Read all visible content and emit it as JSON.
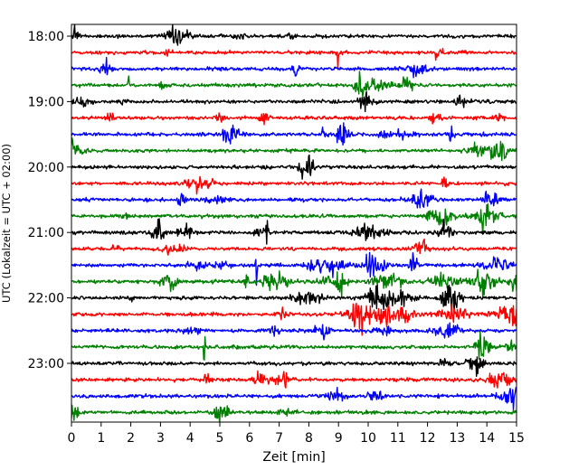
{
  "chart_data": {
    "type": "line",
    "title": "",
    "xlabel": "Zeit  [min]",
    "ylabel": "UTC (Lokalzeit = UTC + 02:00)",
    "xlim": [
      0,
      15
    ],
    "x_ticks": [
      "0",
      "1",
      "2",
      "3",
      "4",
      "5",
      "6",
      "7",
      "8",
      "9",
      "10",
      "11",
      "12",
      "13",
      "14",
      "15"
    ],
    "y_ticks": [
      {
        "label": "18:00",
        "trace": 0
      },
      {
        "label": "19:00",
        "trace": 4
      },
      {
        "label": "20:00",
        "trace": 8
      },
      {
        "label": "21:00",
        "trace": 12
      },
      {
        "label": "22:00",
        "trace": 16
      },
      {
        "label": "23:00",
        "trace": 20
      }
    ],
    "trace_interval_min": 15,
    "trace_count": 24,
    "color_cycle": [
      "#000000",
      "#ff0000",
      "#0000ff",
      "#008000"
    ],
    "grid": false,
    "legend": "none"
  }
}
